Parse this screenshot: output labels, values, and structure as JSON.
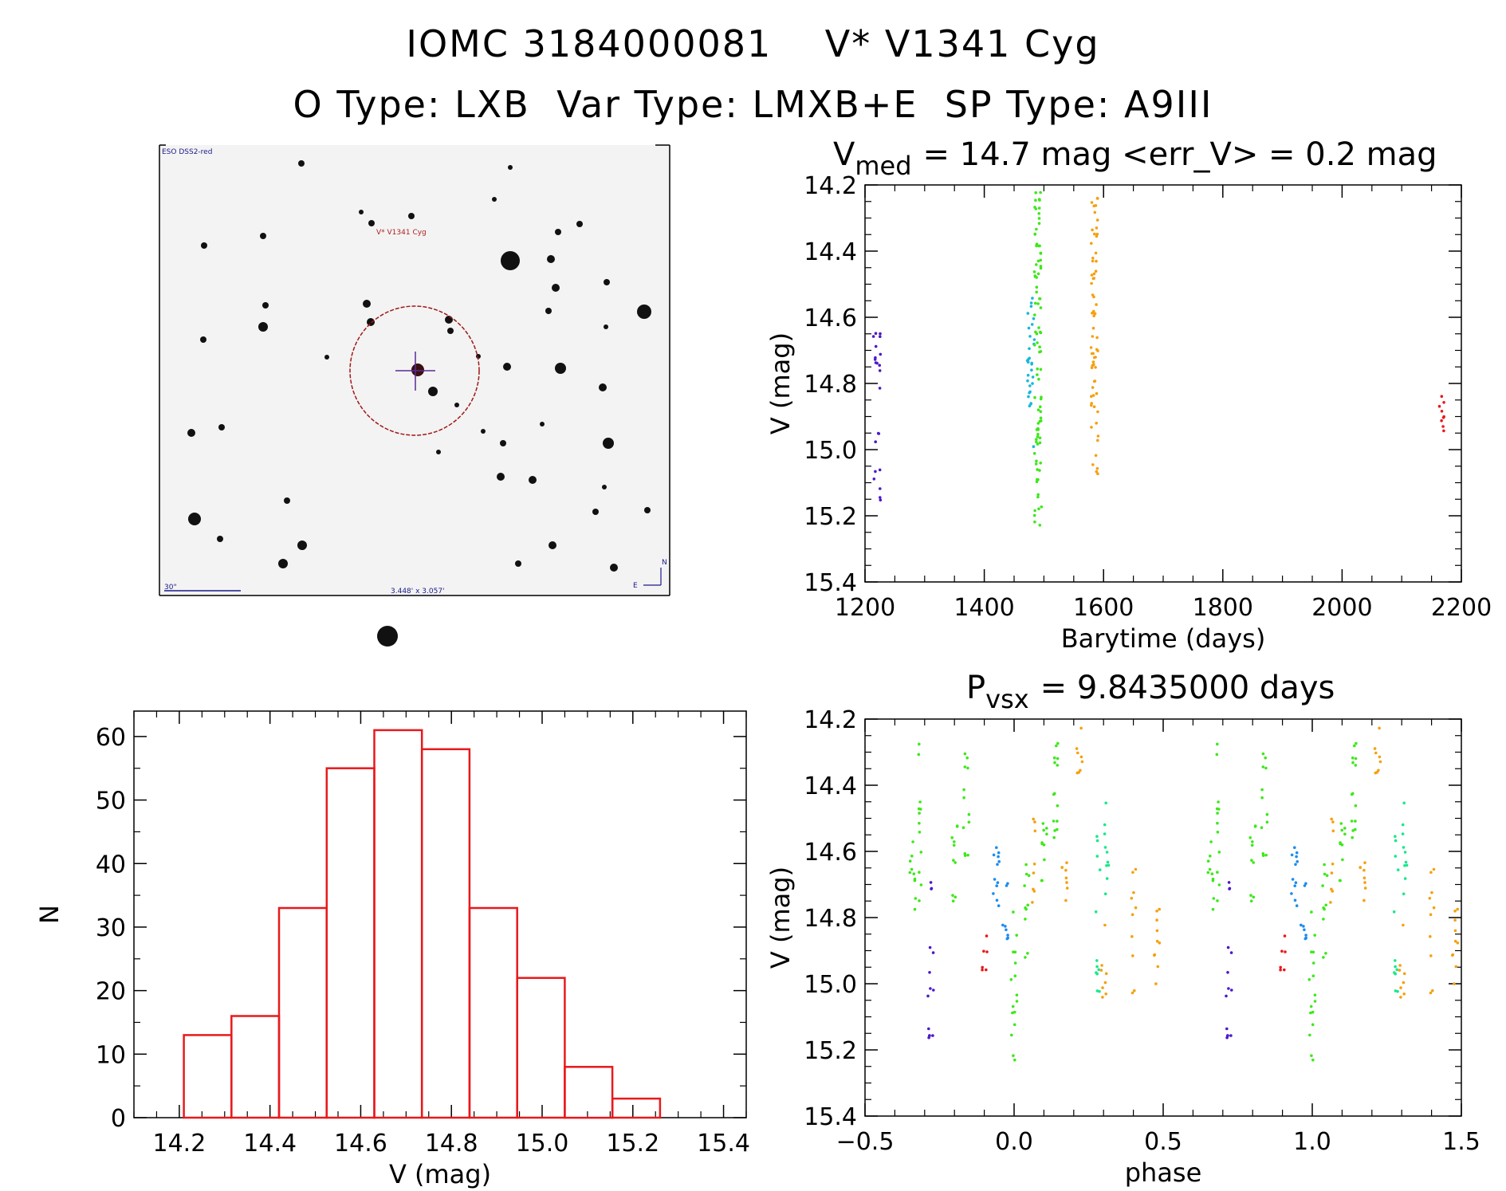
{
  "header": {
    "line1_id": "IOMC 3184000081",
    "line1_name": "V* V1341 Cyg",
    "line2_otype": "O Type: LXB",
    "line2_vartype": "Var Type: LMXB+E",
    "line2_sptype": "SP Type: A9III"
  },
  "finder": {
    "survey_label": "ESO DSS2-red",
    "target_label": "V* V1341 Cyg",
    "scale_label": "30\"",
    "size_label": "3.448' x 3.057'",
    "north_label": "N",
    "east_label": "E"
  },
  "colors": {
    "hist": "#e8191c",
    "cyan": "#17b9d9",
    "green": "#3de81a",
    "orange": "#f5a00d",
    "purple": "#4d19c9",
    "red": "#e8191c",
    "blue": "#1a8cf0",
    "teal": "#1ae88a"
  },
  "chart_data": [
    {
      "type": "scatter",
      "panel": "lightcurve",
      "title_main": "V",
      "title_sub": "med",
      "title_rest": "= 14.7 mag <err_V> = 0.2 mag",
      "xlabel": "Barytime (days)",
      "ylabel": "V (mag)",
      "xlim": [
        1200,
        2200
      ],
      "ylim": [
        15.4,
        14.2
      ],
      "y_inverted": true,
      "xticks": [
        "1200",
        "1400",
        "1600",
        "1800",
        "2000",
        "2200"
      ],
      "yticks": [
        "14.2",
        "14.4",
        "14.6",
        "14.8",
        "15.0",
        "15.2",
        "15.4"
      ],
      "groups": [
        {
          "color": "purple",
          "x": 1220,
          "ymin": 14.63,
          "ymax": 15.18,
          "n": 22
        },
        {
          "color": "cyan",
          "x": 1478,
          "ymin": 14.52,
          "ymax": 15.0,
          "n": 30
        },
        {
          "color": "green",
          "x": 1490,
          "ymin": 14.22,
          "ymax": 15.25,
          "n": 90
        },
        {
          "color": "orange",
          "x": 1585,
          "ymin": 14.21,
          "ymax": 15.08,
          "n": 65
        },
        {
          "color": "red",
          "x": 2165,
          "ymin": 14.79,
          "ymax": 14.98,
          "n": 9
        }
      ]
    },
    {
      "type": "bar",
      "panel": "histogram",
      "xlabel": "V (mag)",
      "ylabel": "N",
      "bin_edges": [
        14.21,
        14.315,
        14.42,
        14.525,
        14.63,
        14.735,
        14.84,
        14.945,
        15.05,
        15.155,
        15.26
      ],
      "values": [
        13,
        16,
        33,
        55,
        61,
        58,
        33,
        22,
        8,
        3
      ],
      "xlim": [
        14.1,
        15.45
      ],
      "ylim": [
        0,
        64
      ],
      "xticks": [
        "14.2",
        "14.4",
        "14.6",
        "14.8",
        "15.0",
        "15.2",
        "15.4"
      ],
      "yticks": [
        "0",
        "10",
        "20",
        "30",
        "40",
        "50",
        "60"
      ]
    },
    {
      "type": "scatter",
      "panel": "phased",
      "title_main": "P",
      "title_sub": "vsx",
      "title_rest": "= 9.8435000 days",
      "xlabel": "phase",
      "ylabel": "V (mag)",
      "xlim": [
        -0.5,
        1.5
      ],
      "ylim": [
        15.4,
        14.2
      ],
      "y_inverted": true,
      "xticks": [
        "−0.5",
        "0.0",
        "0.5",
        "1.0",
        "1.5"
      ],
      "yticks": [
        "14.2",
        "14.4",
        "14.6",
        "14.8",
        "15.0",
        "15.2",
        "15.4"
      ],
      "groups": [
        {
          "color": "green",
          "x": -0.34,
          "ymin": 14.55,
          "ymax": 14.85,
          "n": 10
        },
        {
          "color": "green",
          "x": -0.31,
          "ymin": 14.25,
          "ymax": 14.8,
          "n": 12
        },
        {
          "color": "purple",
          "x": -0.28,
          "ymin": 14.62,
          "ymax": 15.18,
          "n": 14
        },
        {
          "color": "green",
          "x": -0.2,
          "ymin": 14.45,
          "ymax": 14.8,
          "n": 10
        },
        {
          "color": "green",
          "x": -0.16,
          "ymin": 14.22,
          "ymax": 14.65,
          "n": 12
        },
        {
          "color": "red",
          "x": -0.1,
          "ymin": 14.82,
          "ymax": 14.97,
          "n": 6
        },
        {
          "color": "blue",
          "x": -0.06,
          "ymin": 14.55,
          "ymax": 14.78,
          "n": 12
        },
        {
          "color": "blue",
          "x": -0.03,
          "ymin": 14.68,
          "ymax": 14.88,
          "n": 8
        },
        {
          "color": "green",
          "x": 0.0,
          "ymin": 14.78,
          "ymax": 15.25,
          "n": 16
        },
        {
          "color": "green",
          "x": 0.04,
          "ymin": 14.6,
          "ymax": 14.95,
          "n": 10
        },
        {
          "color": "orange",
          "x": 0.07,
          "ymin": 14.5,
          "ymax": 14.78,
          "n": 8
        },
        {
          "color": "green",
          "x": 0.1,
          "ymin": 14.5,
          "ymax": 14.72,
          "n": 10
        },
        {
          "color": "green",
          "x": 0.14,
          "ymin": 14.27,
          "ymax": 14.6,
          "n": 14
        },
        {
          "color": "orange",
          "x": 0.17,
          "ymin": 14.62,
          "ymax": 14.8,
          "n": 8
        },
        {
          "color": "orange",
          "x": 0.22,
          "ymin": 14.22,
          "ymax": 14.38,
          "n": 8
        },
        {
          "color": "teal",
          "x": 0.28,
          "ymin": 14.55,
          "ymax": 15.05,
          "n": 12
        },
        {
          "color": "teal",
          "x": 0.31,
          "ymin": 14.45,
          "ymax": 14.75,
          "n": 10
        },
        {
          "color": "orange",
          "x": 0.3,
          "ymin": 14.82,
          "ymax": 15.08,
          "n": 8
        },
        {
          "color": "orange",
          "x": 0.4,
          "ymin": 14.63,
          "ymax": 15.03,
          "n": 10
        },
        {
          "color": "orange",
          "x": 0.48,
          "ymin": 14.76,
          "ymax": 15.08,
          "n": 10
        }
      ]
    }
  ]
}
